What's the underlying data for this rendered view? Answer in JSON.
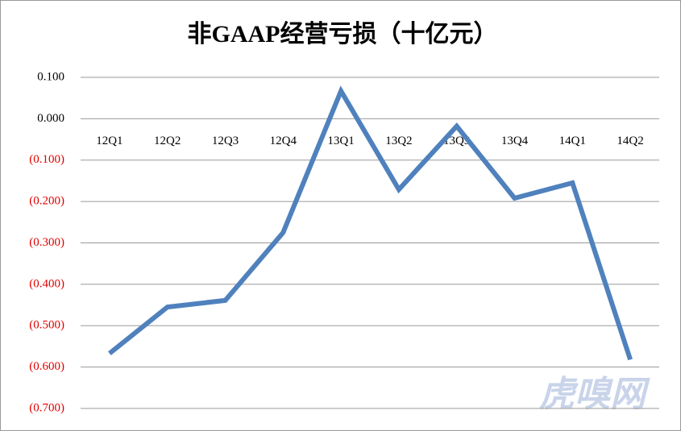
{
  "chart_data": {
    "type": "line",
    "title": "非GAAP经营亏损（十亿元）",
    "categories": [
      "12Q1",
      "12Q2",
      "12Q3",
      "12Q4",
      "13Q1",
      "13Q2",
      "13Q3",
      "13Q4",
      "14Q1",
      "14Q2"
    ],
    "series": [
      {
        "color": "#4f81bd",
        "values": [
          -0.567,
          -0.455,
          -0.439,
          -0.275,
          0.067,
          -0.171,
          -0.018,
          -0.192,
          -0.155,
          -0.582
        ]
      }
    ],
    "ylim": [
      -0.7,
      0.1
    ],
    "yticks": [
      {
        "value": 0.1,
        "label": "0.100"
      },
      {
        "value": 0,
        "label": "0.000"
      },
      {
        "value": -0.1,
        "label": "(0.100)"
      },
      {
        "value": -0.2,
        "label": "(0.200)"
      },
      {
        "value": -0.3,
        "label": "(0.300)"
      },
      {
        "value": -0.4,
        "label": "(0.400)"
      },
      {
        "value": -0.5,
        "label": "(0.500)"
      },
      {
        "value": -0.6,
        "label": "(0.600)"
      },
      {
        "value": -0.7,
        "label": "(0.700)"
      }
    ],
    "grid": true,
    "negative_label_color": "#e00000",
    "watermark": "虎嗅网"
  }
}
